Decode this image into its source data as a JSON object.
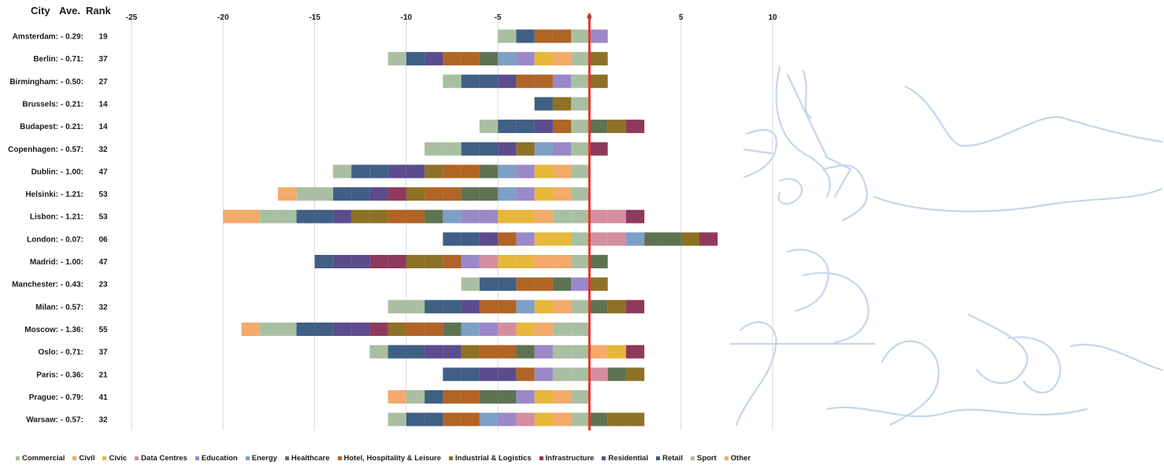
{
  "header": {
    "city": "City",
    "ave": "Ave.",
    "rank": "Rank"
  },
  "colors": {
    "Commercial": "#a9bfa1",
    "Civil": "#f3aa6a",
    "Civic": "#e6b73b",
    "Data Centres": "#d48ea0",
    "Education": "#9b88c8",
    "Energy": "#7ea0c6",
    "Healthcare": "#5d7351",
    "Hotel, Hospitality & Leisure": "#b06426",
    "Industrial & Logistics": "#8d7126",
    "Infrastructure": "#8e3a5c",
    "Residential": "#5b4c8e",
    "Retail": "#3f5f84",
    "Sport": "#a9bfa1",
    "Other": "#f3aa6a",
    "zero_line": "#e03a2f",
    "grid": "#d9d9d9",
    "sketch": "#c5d6ea"
  },
  "chart_data": {
    "type": "bar",
    "orientation": "horizontal",
    "stacked": true,
    "xlim": [
      -25,
      10
    ],
    "x_ticks": [
      "-25",
      "-20",
      "-15",
      "-10",
      "-5",
      "0",
      "5",
      "10"
    ],
    "grid": true,
    "legend_position": "bottom",
    "legend": [
      "Commercial",
      "Civil",
      "Civic",
      "Data Centres",
      "Education",
      "Energy",
      "Healthcare",
      "Hotel, Hospitality & Leisure",
      "Industrial & Logistics",
      "Infrastructure",
      "Residential",
      "Retail",
      "Sport",
      "Other"
    ],
    "rows": [
      {
        "city": "Amsterdam:",
        "ave": "- 0.29:",
        "rank": "19",
        "neg": [
          "Commercial",
          "Hotel, Hospitality & Leisure",
          "Hotel, Hospitality & Leisure",
          "Retail",
          "Sport"
        ],
        "pos": [
          "Education"
        ]
      },
      {
        "city": "Berlin:",
        "ave": "- 0.71:",
        "rank": "37",
        "neg": [
          "Commercial",
          "Civil",
          "Civic",
          "Education",
          "Energy",
          "Healthcare",
          "Hotel, Hospitality & Leisure",
          "Hotel, Hospitality & Leisure",
          "Residential",
          "Retail",
          "Sport"
        ],
        "pos": [
          "Industrial & Logistics"
        ]
      },
      {
        "city": "Birmingham:",
        "ave": "- 0.50:",
        "rank": "27",
        "neg": [
          "Commercial",
          "Education",
          "Hotel, Hospitality & Leisure",
          "Hotel, Hospitality & Leisure",
          "Residential",
          "Retail",
          "Retail",
          "Sport"
        ],
        "pos": [
          "Industrial & Logistics"
        ]
      },
      {
        "city": "Brussels:",
        "ave": "- 0.21:",
        "rank": "14",
        "neg": [
          "Commercial",
          "Industrial & Logistics",
          "Retail"
        ],
        "pos": []
      },
      {
        "city": "Budapest:",
        "ave": "- 0.21:",
        "rank": "14",
        "neg": [
          "Commercial",
          "Hotel, Hospitality & Leisure",
          "Residential",
          "Retail",
          "Retail",
          "Sport"
        ],
        "pos": [
          "Healthcare",
          "Industrial & Logistics",
          "Infrastructure"
        ]
      },
      {
        "city": "Copenhagen:",
        "ave": "- 0.57:",
        "rank": "32",
        "neg": [
          "Commercial",
          "Education",
          "Energy",
          "Industrial & Logistics",
          "Residential",
          "Retail",
          "Retail",
          "Sport",
          "Sport"
        ],
        "pos": [
          "Infrastructure"
        ]
      },
      {
        "city": "Dublin:",
        "ave": "- 1.00:",
        "rank": "47",
        "neg": [
          "Commercial",
          "Civil",
          "Civic",
          "Education",
          "Energy",
          "Healthcare",
          "Hotel, Hospitality & Leisure",
          "Hotel, Hospitality & Leisure",
          "Industrial & Logistics",
          "Residential",
          "Residential",
          "Retail",
          "Retail",
          "Sport"
        ],
        "pos": []
      },
      {
        "city": "Helsinki:",
        "ave": "- 1.21:",
        "rank": "53",
        "neg": [
          "Commercial",
          "Civil",
          "Civic",
          "Education",
          "Energy",
          "Healthcare",
          "Healthcare",
          "Hotel, Hospitality & Leisure",
          "Hotel, Hospitality & Leisure",
          "Industrial & Logistics",
          "Infrastructure",
          "Residential",
          "Retail",
          "Retail",
          "Sport",
          "Sport",
          "Other"
        ],
        "pos": []
      },
      {
        "city": "Lisbon:",
        "ave": "- 1.21:",
        "rank": "53",
        "neg": [
          "Commercial",
          "Commercial",
          "Civil",
          "Civic",
          "Civic",
          "Education",
          "Education",
          "Energy",
          "Healthcare",
          "Hotel, Hospitality & Leisure",
          "Hotel, Hospitality & Leisure",
          "Industrial & Logistics",
          "Industrial & Logistics",
          "Residential",
          "Retail",
          "Retail",
          "Sport",
          "Sport",
          "Other",
          "Other"
        ],
        "pos": [
          "Data Centres",
          "Data Centres",
          "Infrastructure"
        ]
      },
      {
        "city": "London:",
        "ave": "- 0.07:",
        "rank": "06",
        "neg": [
          "Commercial",
          "Civic",
          "Civic",
          "Education",
          "Hotel, Hospitality & Leisure",
          "Residential",
          "Retail",
          "Retail"
        ],
        "pos": [
          "Data Centres",
          "Data Centres",
          "Energy",
          "Healthcare",
          "Healthcare",
          "Industrial & Logistics",
          "Infrastructure"
        ]
      },
      {
        "city": "Madrid:",
        "ave": "- 1.00:",
        "rank": "47",
        "neg": [
          "Commercial",
          "Civil",
          "Civil",
          "Civic",
          "Civic",
          "Data Centres",
          "Education",
          "Hotel, Hospitality & Leisure",
          "Industrial & Logistics",
          "Industrial & Logistics",
          "Infrastructure",
          "Infrastructure",
          "Residential",
          "Residential",
          "Retail"
        ],
        "pos": [
          "Healthcare"
        ]
      },
      {
        "city": "Manchester:",
        "ave": "- 0.43:",
        "rank": "23",
        "neg": [
          "Education",
          "Healthcare",
          "Hotel, Hospitality & Leisure",
          "Hotel, Hospitality & Leisure",
          "Retail",
          "Retail",
          "Sport"
        ],
        "pos": [
          "Industrial & Logistics"
        ]
      },
      {
        "city": "Milan:",
        "ave": "- 0.57:",
        "rank": "32",
        "neg": [
          "Commercial",
          "Civil",
          "Civic",
          "Energy",
          "Hotel, Hospitality & Leisure",
          "Hotel, Hospitality & Leisure",
          "Residential",
          "Retail",
          "Retail",
          "Sport",
          "Sport"
        ],
        "pos": [
          "Healthcare",
          "Industrial & Logistics",
          "Infrastructure"
        ]
      },
      {
        "city": "Moscow:",
        "ave": "- 1.36:",
        "rank": "55",
        "neg": [
          "Commercial",
          "Commercial",
          "Civil",
          "Civic",
          "Data Centres",
          "Education",
          "Energy",
          "Healthcare",
          "Hotel, Hospitality & Leisure",
          "Hotel, Hospitality & Leisure",
          "Industrial & Logistics",
          "Infrastructure",
          "Residential",
          "Residential",
          "Retail",
          "Retail",
          "Sport",
          "Sport",
          "Other"
        ],
        "pos": []
      },
      {
        "city": "Oslo:",
        "ave": "- 0.71:",
        "rank": "37",
        "neg": [
          "Commercial",
          "Commercial",
          "Education",
          "Healthcare",
          "Hotel, Hospitality & Leisure",
          "Hotel, Hospitality & Leisure",
          "Industrial & Logistics",
          "Residential",
          "Residential",
          "Retail",
          "Retail",
          "Sport"
        ],
        "pos": [
          "Civil",
          "Civic",
          "Infrastructure"
        ]
      },
      {
        "city": "Paris:",
        "ave": "- 0.36:",
        "rank": "21",
        "neg": [
          "Commercial",
          "Commercial",
          "Education",
          "Hotel, Hospitality & Leisure",
          "Residential",
          "Residential",
          "Retail",
          "Retail"
        ],
        "pos": [
          "Data Centres",
          "Healthcare",
          "Industrial & Logistics"
        ]
      },
      {
        "city": "Prague:",
        "ave": "- 0.79:",
        "rank": "41",
        "neg": [
          "Commercial",
          "Civil",
          "Civic",
          "Education",
          "Healthcare",
          "Healthcare",
          "Hotel, Hospitality & Leisure",
          "Hotel, Hospitality & Leisure",
          "Retail",
          "Sport",
          "Other"
        ],
        "pos": []
      },
      {
        "city": "Warsaw:",
        "ave": "- 0.57:",
        "rank": "32",
        "neg": [
          "Commercial",
          "Civil",
          "Civic",
          "Data Centres",
          "Education",
          "Energy",
          "Hotel, Hospitality & Leisure",
          "Hotel, Hospitality & Leisure",
          "Retail",
          "Retail",
          "Sport"
        ],
        "pos": [
          "Healthcare",
          "Industrial & Logistics",
          "Industrial & Logistics"
        ]
      }
    ]
  }
}
